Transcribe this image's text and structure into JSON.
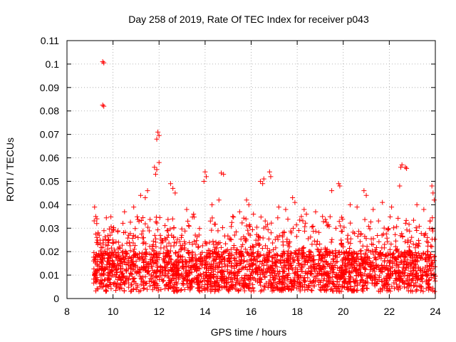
{
  "chart_data": {
    "type": "scatter",
    "title": "Day 258 of 2019, Rate Of TEC Index for receiver p043",
    "xlabel": "GPS time / hours",
    "ylabel": "ROTI / TECUs",
    "xlim": [
      8,
      24
    ],
    "ylim": [
      0,
      0.11
    ],
    "xticks": [
      8,
      10,
      12,
      14,
      16,
      18,
      20,
      22,
      24
    ],
    "yticks": [
      0,
      0.01,
      0.02,
      0.03,
      0.04,
      0.05,
      0.06,
      0.07,
      0.08,
      0.09,
      0.1,
      0.11
    ],
    "grid": true,
    "marker": "+",
    "series_color": "#ff0000",
    "series": [
      {
        "name": "ROTI",
        "x": [
          9.55,
          9.6,
          9.55,
          9.6,
          11.95,
          12.0,
          11.9,
          12.0,
          11.8,
          11.9,
          11.85,
          14.7,
          14.8,
          22.5,
          22.55,
          22.7,
          22.75,
          22.45,
          14.0,
          14.05,
          13.95,
          16.8,
          16.85,
          16.4,
          16.5,
          16.55,
          19.8,
          19.85,
          19.5,
          20.9,
          21.0,
          9.2,
          9.25,
          9.3,
          9.35,
          9.4,
          9.35,
          9.3,
          9.25,
          23.85,
          23.9,
          23.95,
          12.5,
          12.6,
          12.7,
          17.8,
          17.9,
          18.3,
          18.4,
          15.8,
          15.9,
          10.5,
          10.9,
          11.2,
          11.4,
          11.5,
          13.2,
          13.5,
          14.3,
          14.6,
          15.2,
          15.5,
          16.1,
          17.2,
          17.5,
          18.8,
          19.1,
          20.3,
          20.6,
          21.3,
          21.7,
          22.1,
          23.2,
          23.5
        ],
        "y": [
          0.101,
          0.1005,
          0.0825,
          0.082,
          0.071,
          0.0695,
          0.068,
          0.058,
          0.056,
          0.055,
          0.053,
          0.0535,
          0.053,
          0.056,
          0.057,
          0.056,
          0.0555,
          0.048,
          0.054,
          0.052,
          0.05,
          0.054,
          0.052,
          0.05,
          0.049,
          0.051,
          0.049,
          0.048,
          0.046,
          0.046,
          0.044,
          0.039,
          0.035,
          0.034,
          0.028,
          0.027,
          0.028,
          0.026,
          0.0275,
          0.048,
          0.045,
          0.042,
          0.049,
          0.047,
          0.045,
          0.043,
          0.041,
          0.038,
          0.036,
          0.042,
          0.04,
          0.037,
          0.039,
          0.044,
          0.043,
          0.046,
          0.038,
          0.036,
          0.04,
          0.042,
          0.035,
          0.037,
          0.036,
          0.039,
          0.038,
          0.037,
          0.035,
          0.04,
          0.039,
          0.038,
          0.041,
          0.039,
          0.04,
          0.038
        ]
      }
    ],
    "dense_band": {
      "x_start": 9.15,
      "x_end": 24.0,
      "baseline_min": 0.003,
      "baseline_max": 0.02,
      "typical_peak": 0.035
    }
  }
}
